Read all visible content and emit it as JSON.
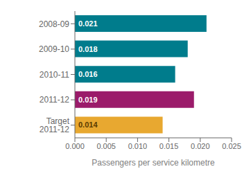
{
  "chart_data": {
    "type": "bar",
    "orientation": "horizontal",
    "categories": [
      "2008-09",
      "2009-10",
      "2010-11",
      "2011-12",
      "Target 2011-12"
    ],
    "values": [
      0.021,
      0.018,
      0.016,
      0.019,
      0.014
    ],
    "colors": [
      "#007C8C",
      "#007C8C",
      "#007C8C",
      "#9B1B6A",
      "#E8A830"
    ],
    "xlabel": "Passengers per service kilometre",
    "xlim": [
      0,
      0.025
    ],
    "xticks": [
      {
        "value": 0,
        "label": "0.000"
      },
      0.005,
      {
        "value": 0.01,
        "label": "0.010"
      },
      0.015,
      {
        "value": 0.02,
        "label": "0.020"
      },
      0.025
    ],
    "data_labels": true,
    "grid": false
  }
}
